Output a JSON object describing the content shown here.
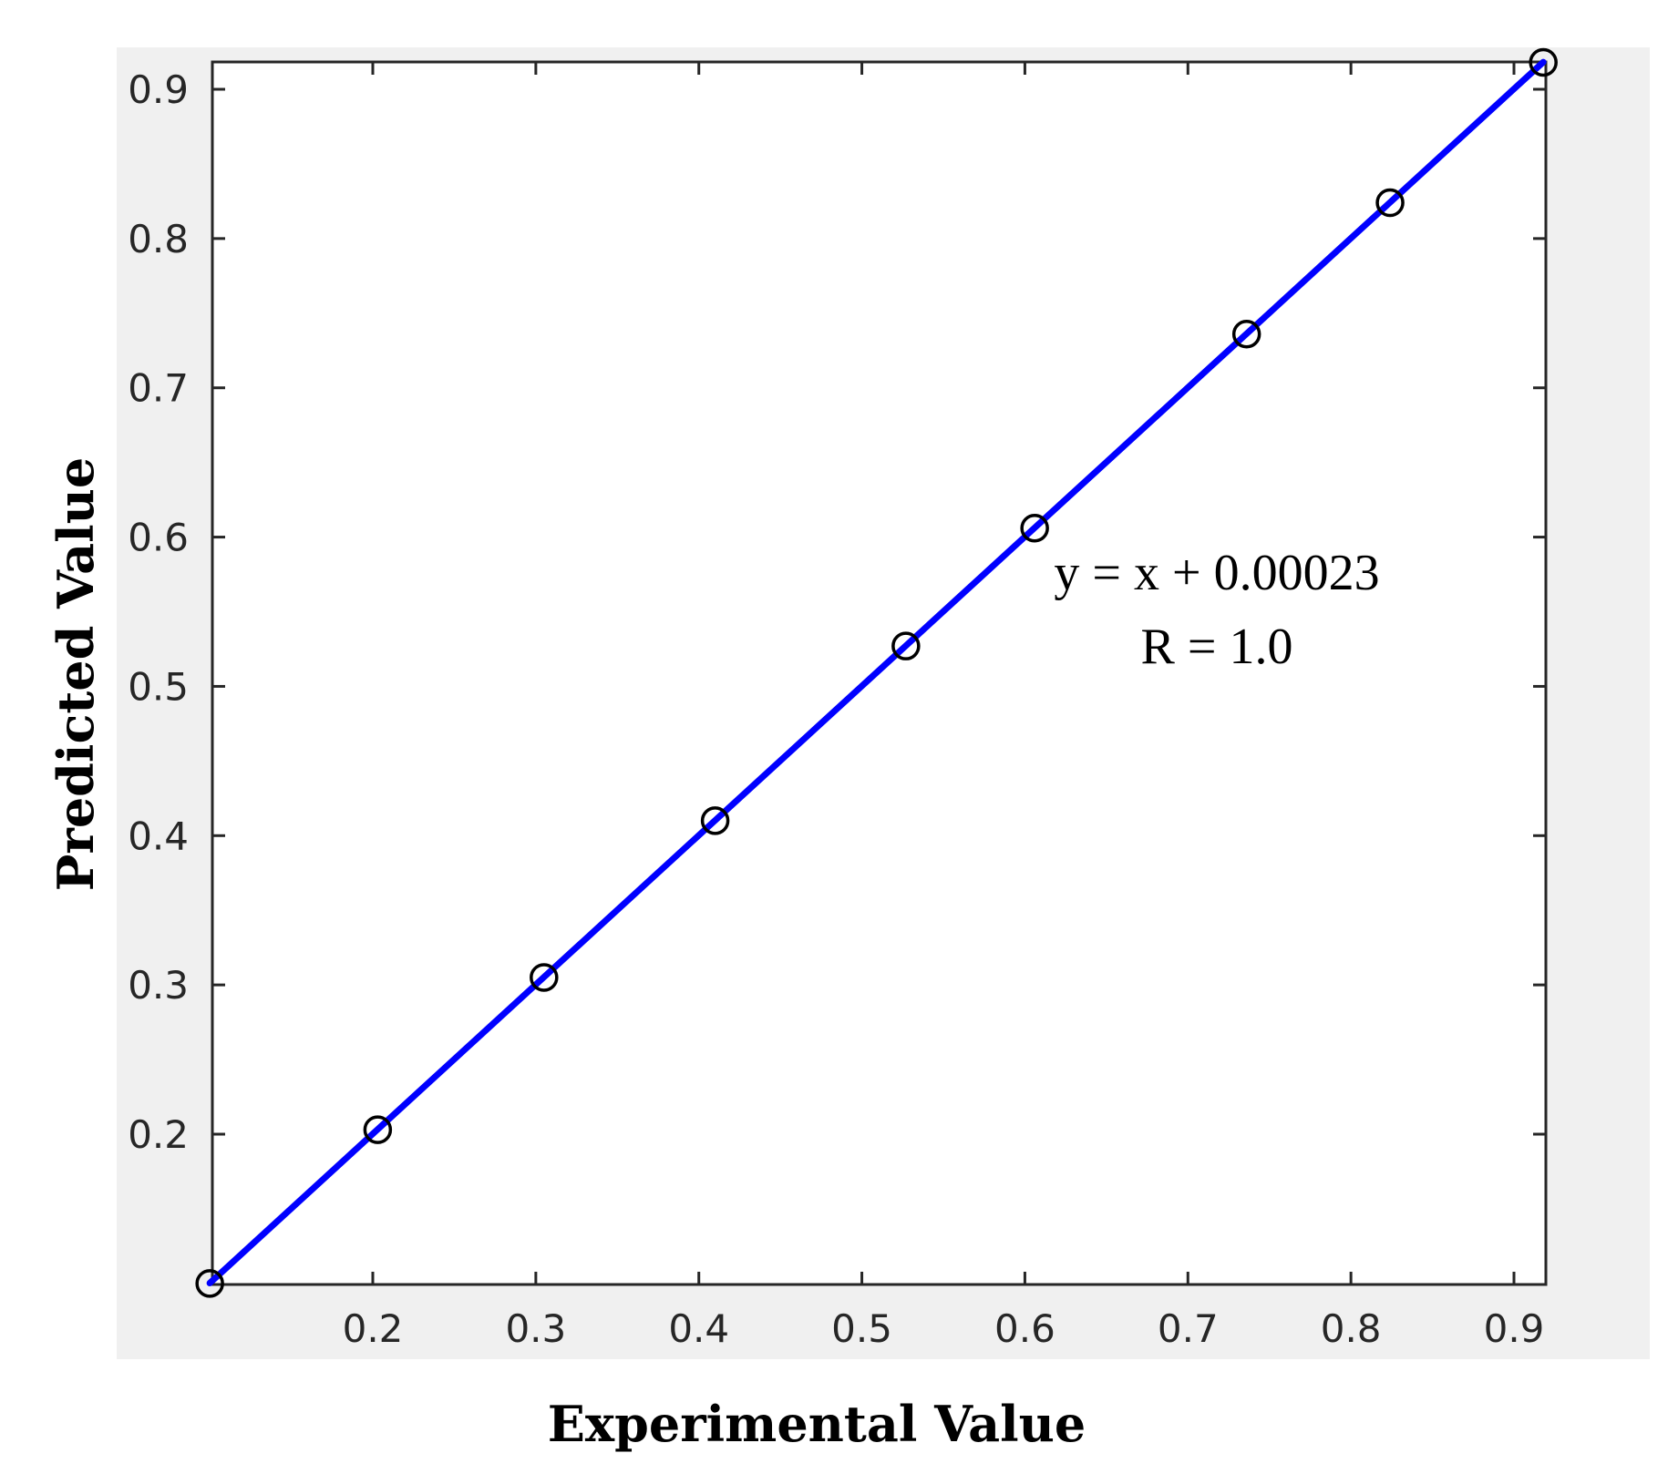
{
  "chart_data": {
    "type": "scatter",
    "title": "",
    "xlabel": "Experimental Value",
    "ylabel": "Predicted Value",
    "xlim": [
      0.1,
      0.915
    ],
    "ylim": [
      0.1,
      0.915
    ],
    "xticks": [
      0.2,
      0.3,
      0.4,
      0.5,
      0.6,
      0.7,
      0.8,
      0.9
    ],
    "yticks": [
      0.2,
      0.3,
      0.4,
      0.5,
      0.6,
      0.7,
      0.8,
      0.9
    ],
    "xtick_labels": [
      "0.2",
      "0.3",
      "0.4",
      "0.5",
      "0.6",
      "0.7",
      "0.8",
      "0.9"
    ],
    "ytick_labels": [
      "0.2",
      "0.3",
      "0.4",
      "0.5",
      "0.6",
      "0.7",
      "0.8",
      "0.9"
    ],
    "grid": false,
    "series": [
      {
        "type": "scatter",
        "marker": "circle-open",
        "color": "#000000",
        "x": [
          0.1,
          0.203,
          0.305,
          0.41,
          0.527,
          0.606,
          0.736,
          0.824,
          0.918
        ],
        "y": [
          0.1,
          0.203,
          0.305,
          0.41,
          0.527,
          0.606,
          0.736,
          0.824,
          0.918
        ]
      },
      {
        "type": "line",
        "color": "#0000ff",
        "x": [
          0.1,
          0.918
        ],
        "y": [
          0.10023,
          0.91823
        ]
      }
    ],
    "annotations": [
      "y = x + 0.00023",
      "R = 1.0"
    ]
  }
}
